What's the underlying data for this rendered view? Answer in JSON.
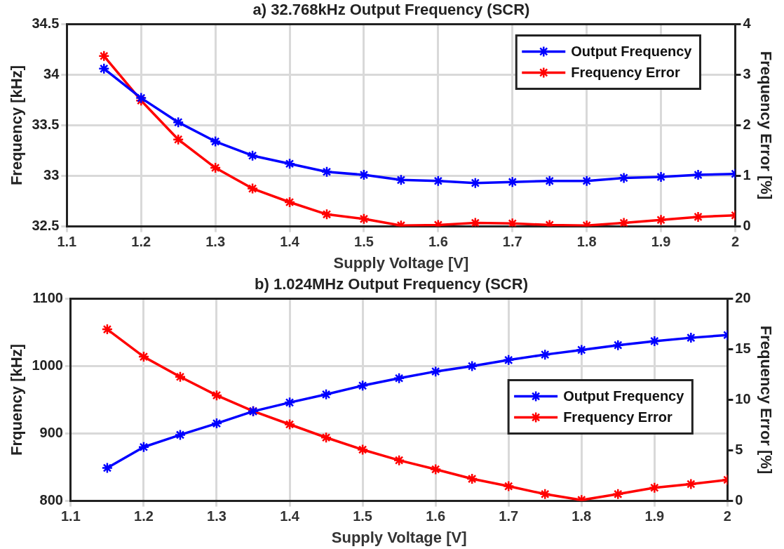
{
  "chart_data": [
    {
      "type": "line",
      "title": "a) 32.768kHz Output Frequency (SCR)",
      "xlabel": "Supply Voltage [V]",
      "ylabel": "Frequency [kHz]",
      "y2label": "Frequency Error [%]",
      "x": [
        1.15,
        1.2,
        1.25,
        1.3,
        1.35,
        1.4,
        1.45,
        1.5,
        1.55,
        1.6,
        1.65,
        1.7,
        1.75,
        1.8,
        1.85,
        1.9,
        1.95,
        2
      ],
      "series": [
        {
          "name": "Output Frequency",
          "color": "#0000ff",
          "values": [
            34.06,
            33.77,
            33.53,
            33.34,
            33.2,
            33.12,
            33.04,
            33.01,
            32.96,
            32.95,
            32.93,
            32.94,
            32.95,
            32.95,
            32.98,
            32.99,
            33.01,
            33.02
          ]
        },
        {
          "name": "Frequency Error",
          "color": "#ff0000",
          "axis": "y2",
          "values": [
            3.37,
            2.49,
            1.72,
            1.16,
            0.75,
            0.48,
            0.24,
            0.15,
            0.02,
            0.03,
            0.07,
            0.06,
            0.03,
            0.02,
            0.07,
            0.13,
            0.19,
            0.22
          ]
        }
      ],
      "xlim": [
        1.1,
        2
      ],
      "xticks": [
        1.1,
        1.2,
        1.3,
        1.4,
        1.5,
        1.6,
        1.7,
        1.8,
        1.9,
        2
      ],
      "ylim": [
        32.5,
        34.5
      ],
      "yticks": [
        32.5,
        33,
        33.5,
        34,
        34.5
      ],
      "y2lim": [
        0,
        4
      ],
      "y2ticks": [
        0,
        1,
        2,
        3,
        4
      ],
      "grid": true,
      "legend": "top right",
      "marker": "cross",
      "line_style": "solid"
    },
    {
      "type": "line",
      "title": "b) 1.024MHz Output Frequency (SCR)",
      "xlabel": "Supply Voltage [V]",
      "ylabel": "Frquency [kHz]",
      "y2label": "Frequency Error [%]",
      "x": [
        1.15,
        1.2,
        1.25,
        1.3,
        1.35,
        1.4,
        1.45,
        1.5,
        1.55,
        1.6,
        1.65,
        1.7,
        1.75,
        1.8,
        1.85,
        1.9,
        1.95,
        2
      ],
      "series": [
        {
          "name": "Output Frequency",
          "color": "#0000ff",
          "values": [
            849,
            880,
            898,
            915,
            933,
            946,
            958,
            971,
            982,
            992,
            1000,
            1009,
            1017,
            1024,
            1031,
            1037,
            1042,
            1046
          ]
        },
        {
          "name": "Frequency Error",
          "color": "#ff0000",
          "axis": "y2",
          "values": [
            16.97,
            14.26,
            12.27,
            10.44,
            8.88,
            7.57,
            6.27,
            5.07,
            4.02,
            3.13,
            2.19,
            1.46,
            0.68,
            0.1,
            0.68,
            1.31,
            1.67,
            2.09
          ]
        }
      ],
      "xlim": [
        1.1,
        2
      ],
      "xticks": [
        1.1,
        1.2,
        1.3,
        1.4,
        1.5,
        1.6,
        1.7,
        1.8,
        1.9,
        2
      ],
      "ylim": [
        800,
        1100
      ],
      "yticks": [
        800,
        900,
        1000,
        1100
      ],
      "y2lim": [
        0,
        20
      ],
      "y2ticks": [
        0,
        5,
        10,
        15,
        20
      ],
      "grid": true,
      "legend": "right",
      "marker": "cross",
      "line_style": "solid"
    }
  ]
}
